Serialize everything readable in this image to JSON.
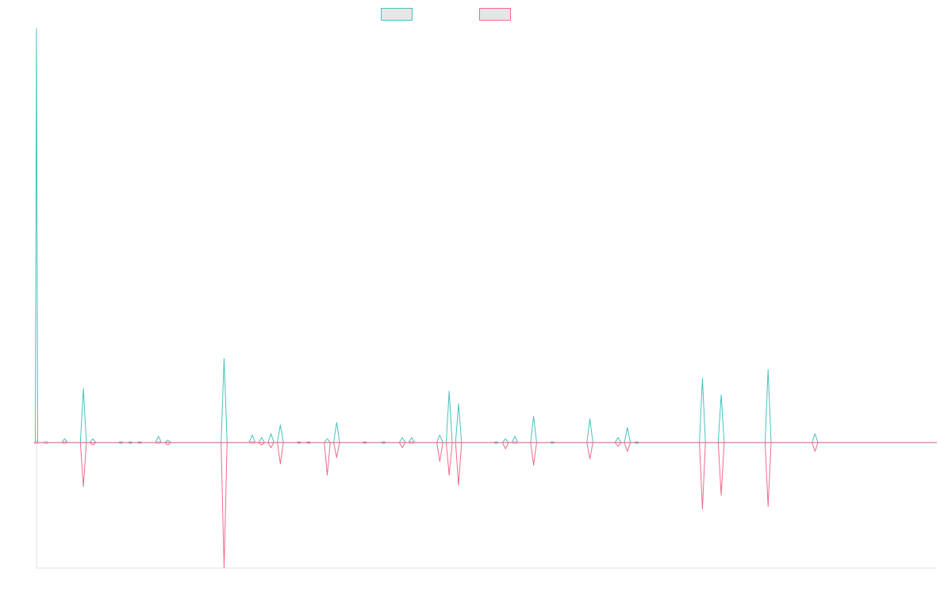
{
  "chart_data": {
    "type": "line",
    "title": "",
    "xlabel": "",
    "ylabel": "",
    "x_count": 97,
    "ylim": [
      -1,
      3.3
    ],
    "grid": false,
    "legend_placement": "top-center",
    "series": [
      {
        "color": "#4bc0c0",
        "fill": "#e6e6e6",
        "spikes": [
          {
            "i": 0,
            "v": 3.3
          },
          {
            "i": 1,
            "v": 0
          },
          {
            "i": 3,
            "v": 0.03
          },
          {
            "i": 5,
            "v": 0.43
          },
          {
            "i": 6,
            "v": 0.03
          },
          {
            "i": 9,
            "v": 0
          },
          {
            "i": 10,
            "v": 0
          },
          {
            "i": 11,
            "v": 0
          },
          {
            "i": 13,
            "v": 0.05
          },
          {
            "i": 14,
            "v": 0.02
          },
          {
            "i": 20,
            "v": 0.67
          },
          {
            "i": 23,
            "v": 0.06
          },
          {
            "i": 24,
            "v": 0.04
          },
          {
            "i": 25,
            "v": 0.07
          },
          {
            "i": 26,
            "v": 0.14
          },
          {
            "i": 28,
            "v": 0
          },
          {
            "i": 29,
            "v": 0
          },
          {
            "i": 31,
            "v": 0.03
          },
          {
            "i": 32,
            "v": 0.16
          },
          {
            "i": 35,
            "v": 0
          },
          {
            "i": 37,
            "v": 0
          },
          {
            "i": 39,
            "v": 0.04
          },
          {
            "i": 40,
            "v": 0.04
          },
          {
            "i": 43,
            "v": 0.06
          },
          {
            "i": 44,
            "v": 0.41
          },
          {
            "i": 45,
            "v": 0.31
          },
          {
            "i": 49,
            "v": 0
          },
          {
            "i": 50,
            "v": 0.03
          },
          {
            "i": 51,
            "v": 0.05
          },
          {
            "i": 53,
            "v": 0.21
          },
          {
            "i": 55,
            "v": 0
          },
          {
            "i": 59,
            "v": 0.19
          },
          {
            "i": 62,
            "v": 0.04
          },
          {
            "i": 63,
            "v": 0.12
          },
          {
            "i": 64,
            "v": 0
          },
          {
            "i": 71,
            "v": 0.51
          },
          {
            "i": 73,
            "v": 0.38
          },
          {
            "i": 78,
            "v": 0.58
          },
          {
            "i": 83,
            "v": 0.07
          }
        ]
      },
      {
        "color": "#f06a8c",
        "fill": "#e6e6e6",
        "spikes": [
          {
            "i": 0,
            "v": 0
          },
          {
            "i": 1,
            "v": 0
          },
          {
            "i": 3,
            "v": 0
          },
          {
            "i": 5,
            "v": -0.35
          },
          {
            "i": 6,
            "v": -0.02
          },
          {
            "i": 13,
            "v": 0
          },
          {
            "i": 14,
            "v": -0.02
          },
          {
            "i": 20,
            "v": -1.0
          },
          {
            "i": 23,
            "v": -0.01
          },
          {
            "i": 24,
            "v": -0.02
          },
          {
            "i": 25,
            "v": -0.04
          },
          {
            "i": 26,
            "v": -0.17
          },
          {
            "i": 31,
            "v": -0.26
          },
          {
            "i": 32,
            "v": -0.12
          },
          {
            "i": 39,
            "v": -0.04
          },
          {
            "i": 40,
            "v": -0.01
          },
          {
            "i": 43,
            "v": -0.15
          },
          {
            "i": 44,
            "v": -0.26
          },
          {
            "i": 45,
            "v": -0.34
          },
          {
            "i": 50,
            "v": -0.05
          },
          {
            "i": 51,
            "v": -0.01
          },
          {
            "i": 53,
            "v": -0.18
          },
          {
            "i": 59,
            "v": -0.13
          },
          {
            "i": 62,
            "v": -0.03
          },
          {
            "i": 63,
            "v": -0.07
          },
          {
            "i": 71,
            "v": -0.53
          },
          {
            "i": 73,
            "v": -0.42
          },
          {
            "i": 78,
            "v": -0.51
          },
          {
            "i": 83,
            "v": -0.07
          }
        ]
      }
    ]
  }
}
